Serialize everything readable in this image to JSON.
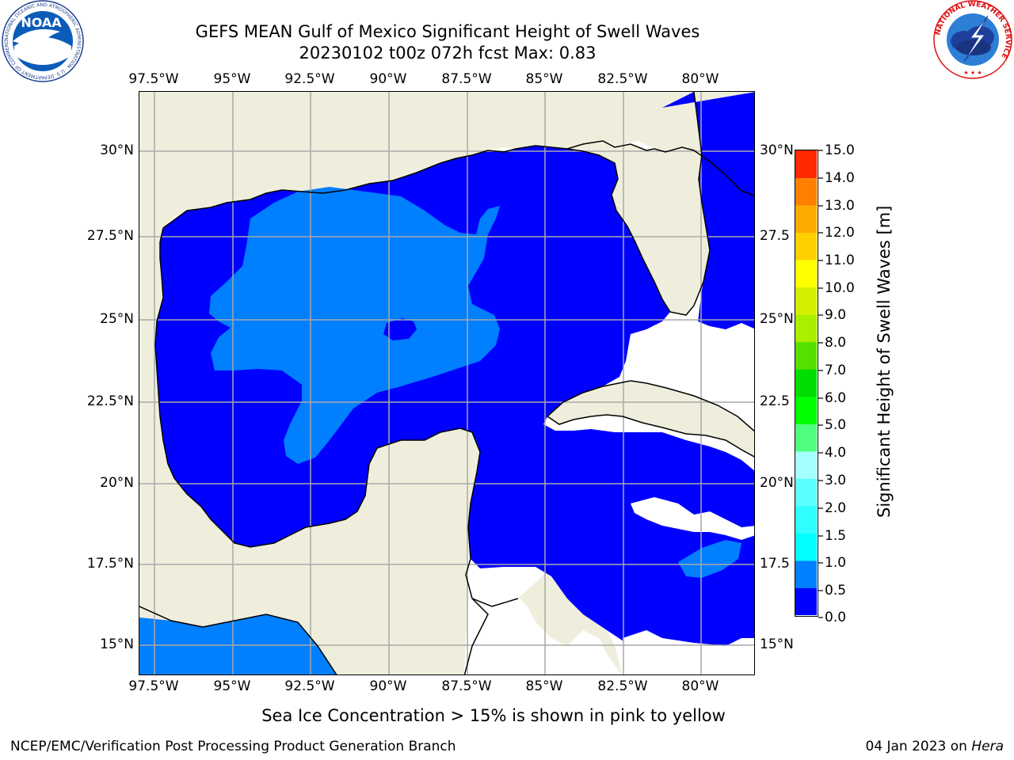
{
  "header": {
    "title_line1": "GEFS MEAN Gulf of Mexico Significant Height of Swell Waves",
    "title_line2": "20230102 t00z 072h fcst   Max: 0.83"
  },
  "logos": {
    "noaa_text": "NOAA",
    "noaa_ring_text": "NATIONAL OCEANIC AND ATMOSPHERIC ADMINISTRATION · U.S. DEPARTMENT OF COMMERCE",
    "nws_ring_text": "NATIONAL WEATHER SERVICE"
  },
  "map": {
    "lon_labels": [
      "97.5°W",
      "95°W",
      "92.5°W",
      "90°W",
      "87.5°W",
      "85°W",
      "82.5°W",
      "80°W"
    ],
    "lat_labels_left": [
      "30°N",
      "27.5°N",
      "25°N",
      "22.5°N",
      "20°N",
      "17.5°N",
      "15°N"
    ],
    "lat_labels_right": [
      "30°N",
      "27.5",
      "25°N",
      "22.5",
      "20°N",
      "17.5",
      "15°N"
    ],
    "colors": {
      "land": "#efeedc",
      "ocean_low": "#0000ff",
      "ocean_mid": "#007fff",
      "no_data": "#ffffff",
      "grid": "#a9a9a9",
      "coast": "#000000"
    }
  },
  "colorbar": {
    "title": "Significant Height of Swell Waves [m]",
    "tick_labels": [
      "15.0",
      "14.0",
      "13.0",
      "12.0",
      "11.0",
      "10.0",
      "9.0",
      "8.0",
      "7.0",
      "6.0",
      "5.0",
      "4.0",
      "3.0",
      "2.0",
      "1.5",
      "1.0",
      "0.5",
      "0.0"
    ],
    "colors": [
      "#0000ff",
      "#007fff",
      "#00ffff",
      "#2fffff",
      "#5cffff",
      "#a6ffff",
      "#50ff80",
      "#00ff00",
      "#00dd00",
      "#55e000",
      "#aaee00",
      "#d4f000",
      "#ffff00",
      "#ffd000",
      "#ffaa00",
      "#ff8000",
      "#ff5500",
      "#ff2a00",
      "#ff0000"
    ]
  },
  "note": "Sea Ice Concentration > 15% is shown in pink to yellow",
  "footer": {
    "left": "NCEP/EMC/Verification Post Processing Product Generation Branch",
    "date": "04 Jan 2023 on ",
    "machine": "Hera"
  }
}
